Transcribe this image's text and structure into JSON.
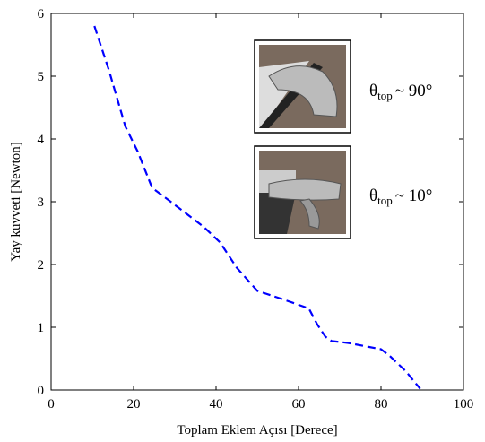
{
  "chart_data": {
    "type": "line",
    "xlabel": "Toplam Eklem Açısı [Derece]",
    "ylabel": "Yay kuvveti [Newton]",
    "x": [
      10.5,
      14,
      18,
      21,
      24.5,
      28,
      33,
      37,
      41,
      45,
      50,
      56,
      62.5,
      64.5,
      66.5,
      68,
      72,
      76,
      80,
      82,
      86,
      89.5
    ],
    "series": [
      {
        "color": "#0000ff",
        "values": [
          5.8,
          5.1,
          4.2,
          3.8,
          3.22,
          3.05,
          2.8,
          2.6,
          2.35,
          1.95,
          1.58,
          1.45,
          1.3,
          1.05,
          0.85,
          0.78,
          0.75,
          0.7,
          0.65,
          0.55,
          0.3,
          0.02
        ]
      }
    ],
    "xlim": [
      0,
      100
    ],
    "xticks": [
      0,
      20,
      40,
      60,
      80,
      100
    ],
    "ylim": [
      0,
      6
    ],
    "yticks": [
      0,
      1,
      2,
      3,
      4,
      5,
      6
    ],
    "annotations": [
      {
        "symbol": "θ",
        "subscript": "top",
        "text": "~ 90°"
      },
      {
        "symbol": "θ",
        "subscript": "top",
        "text": "~ 10°"
      }
    ]
  }
}
